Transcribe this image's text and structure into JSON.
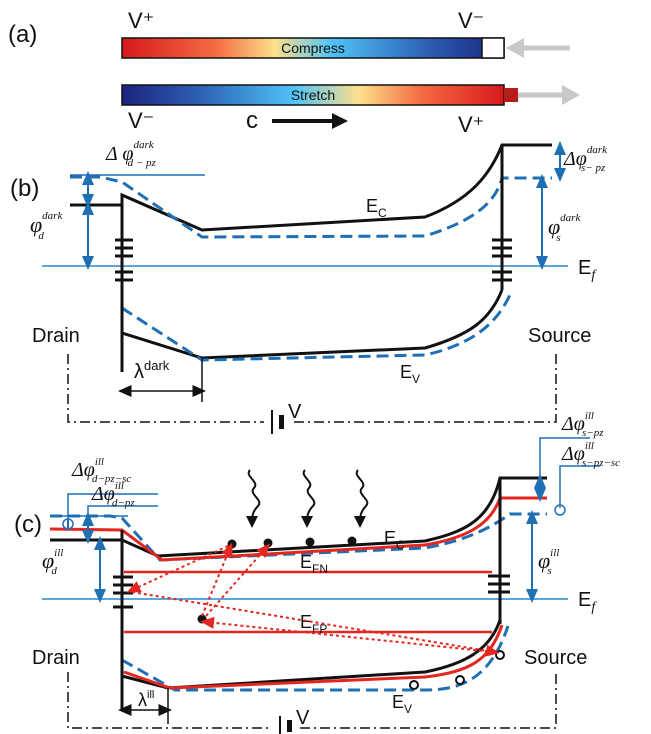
{
  "panel_a": {
    "label": "(a)",
    "compress": {
      "left_terminal": "V⁺",
      "right_terminal": "V⁻",
      "text": "Compress"
    },
    "stretch": {
      "left_terminal": "V⁻",
      "right_terminal": "V⁺",
      "text": "Stretch"
    },
    "c_axis": "c"
  },
  "panel_b": {
    "label": "(b)",
    "delta_phi_d": {
      "base": "Δ φ",
      "sup": "dark",
      "sub": "d − pz"
    },
    "delta_phi_s": {
      "base": "Δφ",
      "sup": "dark",
      "sub": "s− pz"
    },
    "phi_d": {
      "base": "φ",
      "sup": "dark",
      "sub": "d"
    },
    "phi_s": {
      "base": "φ",
      "sup": "dark",
      "sub": "s"
    },
    "ec": {
      "base": "E",
      "sub": "C"
    },
    "ev": {
      "base": "E",
      "sub": "V"
    },
    "ef": {
      "base": "E",
      "sub": "f"
    },
    "drain": "Drain",
    "source": "Source",
    "lambda": {
      "base": "λ",
      "sup": "dark"
    },
    "bias": "V"
  },
  "panel_c": {
    "label": "(c)",
    "delta_phi_d_sc": {
      "base": "Δφ",
      "sup": "ill",
      "sub": "d−pz−sc"
    },
    "delta_phi_d": {
      "base": "Δφ",
      "sup": "ill",
      "sub": "d−pz"
    },
    "delta_phi_s": {
      "base": "Δφ",
      "sup": "ill",
      "sub": "s−pz"
    },
    "delta_phi_s_sc": {
      "base": "Δφ",
      "sup": "ill",
      "sub": "s−pz−sc"
    },
    "phi_d": {
      "base": "φ",
      "sup": "ill",
      "sub": "d"
    },
    "phi_s": {
      "base": "φ",
      "sup": "ill",
      "sub": "s"
    },
    "ec": {
      "base": "E",
      "sub": "C"
    },
    "ev": {
      "base": "E",
      "sub": "V"
    },
    "ef": {
      "base": "E",
      "sub": "f"
    },
    "efn": {
      "base": "E",
      "sub": "FN"
    },
    "efp": {
      "base": "E",
      "sub": "FP"
    },
    "drain": "Drain",
    "source": "Source",
    "lambda": {
      "base": "λ",
      "sup": "ill"
    },
    "bias": "V"
  },
  "colors": {
    "band_black": "#111111",
    "strain_dashed_blue": "#1f6fb5",
    "fermi_blue": "#5aa7dd",
    "quasi_fermi_red": "#e3261f",
    "arrow_gray": "#c8c8c8"
  }
}
